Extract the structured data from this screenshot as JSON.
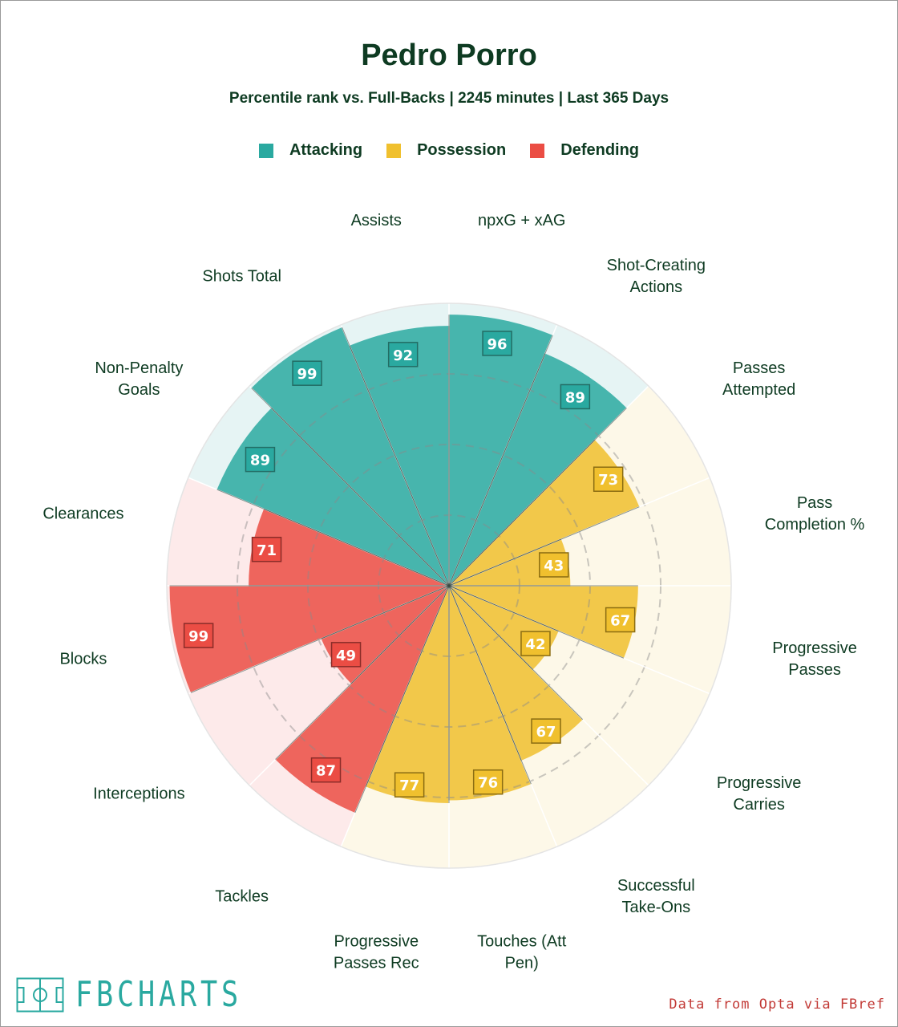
{
  "title": "Pedro Porro",
  "subtitle": "Percentile rank vs. Full-Backs | 2245 minutes | Last 365 Days",
  "legend": [
    {
      "label": "Attacking",
      "color": "#2aa9a0"
    },
    {
      "label": "Possession",
      "color": "#f0c02e"
    },
    {
      "label": "Defending",
      "color": "#eb4d44"
    }
  ],
  "logo": {
    "text": "FBCHARTS",
    "icon": "pitch-icon"
  },
  "credit": "Data from Opta via FBref",
  "colors": {
    "Attacking": {
      "fill": "#2aa9a0",
      "bg": "#e6f4f4",
      "label_bg": "#2aa9a0",
      "label_border": "#236c64"
    },
    "Possession": {
      "fill": "#f0c02e",
      "bg": "#fdf8e8",
      "label_bg": "#f0c02e",
      "label_border": "#8a6c12"
    },
    "Defending": {
      "fill": "#eb4d44",
      "bg": "#fdeaea",
      "label_bg": "#eb4d44",
      "label_border": "#8a2c28"
    },
    "text": "#0e3b22"
  },
  "chart_data": {
    "type": "radial-bar",
    "title": "Pedro Porro",
    "subtitle": "Percentile rank vs. Full-Backs | 2245 minutes | Last 365 Days",
    "range": [
      0,
      100
    ],
    "series": [
      {
        "category": "Attacking",
        "label": "npxG + xAG",
        "label_lines": [
          "npxG + xAG"
        ],
        "value": 96
      },
      {
        "category": "Attacking",
        "label": "Shot-Creating Actions",
        "label_lines": [
          "Shot-Creating",
          "Actions"
        ],
        "value": 89
      },
      {
        "category": "Possession",
        "label": "Passes Attempted",
        "label_lines": [
          "Passes",
          "Attempted"
        ],
        "value": 73
      },
      {
        "category": "Possession",
        "label": "Pass Completion %",
        "label_lines": [
          "Pass",
          "Completion %"
        ],
        "value": 43
      },
      {
        "category": "Possession",
        "label": "Progressive Passes",
        "label_lines": [
          "Progressive",
          "Passes"
        ],
        "value": 67
      },
      {
        "category": "Possession",
        "label": "Progressive Carries",
        "label_lines": [
          "Progressive",
          "Carries"
        ],
        "value": 42
      },
      {
        "category": "Possession",
        "label": "Successful Take-Ons",
        "label_lines": [
          "Successful",
          "Take-Ons"
        ],
        "value": 67
      },
      {
        "category": "Possession",
        "label": "Touches (Att Pen)",
        "label_lines": [
          "Touches (Att",
          "Pen)"
        ],
        "value": 76
      },
      {
        "category": "Possession",
        "label": "Progressive Passes Rec",
        "label_lines": [
          "Progressive",
          "Passes Rec"
        ],
        "value": 77
      },
      {
        "category": "Defending",
        "label": "Tackles",
        "label_lines": [
          "Tackles"
        ],
        "value": 87
      },
      {
        "category": "Defending",
        "label": "Interceptions",
        "label_lines": [
          "Interceptions"
        ],
        "value": 49
      },
      {
        "category": "Defending",
        "label": "Blocks",
        "label_lines": [
          "Blocks"
        ],
        "value": 99
      },
      {
        "category": "Defending",
        "label": "Clearances",
        "label_lines": [
          "Clearances"
        ],
        "value": 71
      },
      {
        "category": "Attacking",
        "label": "Non-Penalty Goals",
        "label_lines": [
          "Non-Penalty",
          "Goals"
        ],
        "value": 89
      },
      {
        "category": "Attacking",
        "label": "Shots Total",
        "label_lines": [
          "Shots Total"
        ],
        "value": 99
      },
      {
        "category": "Attacking",
        "label": "Assists",
        "label_lines": [
          "Assists"
        ],
        "value": 92
      }
    ]
  }
}
